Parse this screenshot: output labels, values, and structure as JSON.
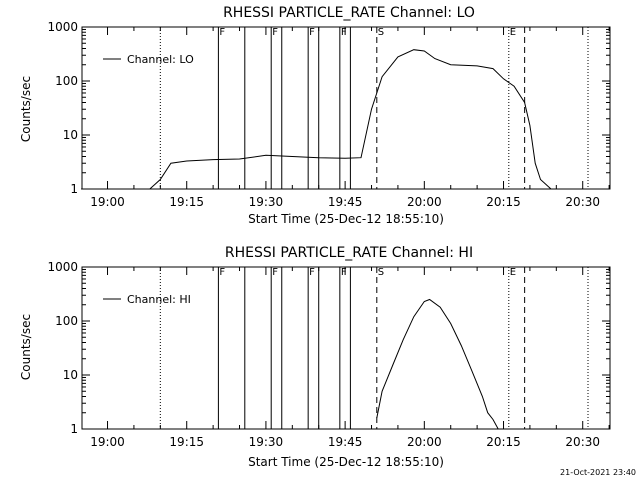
{
  "chart_data": [
    {
      "type": "line",
      "title": "RHESSI PARTICLE_RATE Channel: LO",
      "xlabel": "Start Time (25-Dec-12 18:55:10)",
      "ylabel": "Counts/sec",
      "y_scale": "log",
      "ylim": [
        1,
        1000
      ],
      "y_ticks": [
        "1",
        "10",
        "100",
        "1000"
      ],
      "xlim": [
        "18:55:10",
        "20:35:10"
      ],
      "x_ticks": [
        "19:00",
        "19:15",
        "19:30",
        "19:45",
        "20:00",
        "20:15",
        "20:30"
      ],
      "legend": "top-left",
      "series": [
        {
          "name": "Channel: LO",
          "x": [
            "18:55",
            "19:00",
            "19:05",
            "19:08",
            "19:10",
            "19:12",
            "19:15",
            "19:20",
            "19:25",
            "19:30",
            "19:35",
            "19:40",
            "19:45",
            "19:48",
            "19:50",
            "19:52",
            "19:55",
            "19:58",
            "20:00",
            "20:02",
            "20:05",
            "20:10",
            "20:13",
            "20:15",
            "20:17",
            "20:19",
            "20:20",
            "20:21",
            "20:22",
            "20:24",
            "20:26",
            "20:28",
            "20:31"
          ],
          "values": [
            1,
            1,
            1,
            1,
            1.5,
            3.0,
            3.3,
            3.5,
            3.6,
            4.2,
            4.0,
            3.8,
            3.7,
            3.8,
            30,
            120,
            280,
            380,
            360,
            260,
            200,
            190,
            170,
            110,
            80,
            40,
            15,
            3,
            1.5,
            1,
            1,
            1,
            1
          ]
        }
      ],
      "vertical_markers": [
        {
          "time": "19:10",
          "label": "",
          "style": "dotted"
        },
        {
          "time": "19:21",
          "label": "F",
          "style": "solid"
        },
        {
          "time": "19:26",
          "label": "",
          "style": "solid"
        },
        {
          "time": "19:31",
          "label": "F",
          "style": "solid"
        },
        {
          "time": "19:33",
          "label": "",
          "style": "solid"
        },
        {
          "time": "19:38",
          "label": "F",
          "style": "solid"
        },
        {
          "time": "19:40",
          "label": "",
          "style": "solid"
        },
        {
          "time": "19:44",
          "label": "F",
          "style": "solid"
        },
        {
          "time": "19:46",
          "label": "",
          "style": "solid"
        },
        {
          "time": "19:51",
          "label": "S",
          "style": "dashed"
        },
        {
          "time": "20:16",
          "label": "E",
          "style": "dotted"
        },
        {
          "time": "20:19",
          "label": "",
          "style": "dashed"
        },
        {
          "time": "20:31",
          "label": "",
          "style": "dotted"
        }
      ]
    },
    {
      "type": "line",
      "title": "RHESSI PARTICLE_RATE Channel: HI",
      "xlabel": "Start Time (25-Dec-12 18:55:10)",
      "ylabel": "Counts/sec",
      "y_scale": "log",
      "ylim": [
        1,
        1000
      ],
      "y_ticks": [
        "1",
        "10",
        "100",
        "1000"
      ],
      "xlim": [
        "18:55:10",
        "20:35:10"
      ],
      "x_ticks": [
        "19:00",
        "19:15",
        "19:30",
        "19:45",
        "20:00",
        "20:15",
        "20:30"
      ],
      "legend": "top-left",
      "series": [
        {
          "name": "Channel: HI",
          "x": [
            "19:51",
            "19:52",
            "19:54",
            "19:56",
            "19:58",
            "20:00",
            "20:01",
            "20:03",
            "20:05",
            "20:07",
            "20:09",
            "20:11",
            "20:12",
            "20:13",
            "20:14"
          ],
          "values": [
            1.6,
            5,
            15,
            45,
            120,
            230,
            250,
            180,
            90,
            35,
            12,
            4,
            2,
            1.5,
            1
          ]
        }
      ],
      "vertical_markers": [
        {
          "time": "19:10",
          "label": "",
          "style": "dotted"
        },
        {
          "time": "19:21",
          "label": "F",
          "style": "solid"
        },
        {
          "time": "19:26",
          "label": "",
          "style": "solid"
        },
        {
          "time": "19:31",
          "label": "F",
          "style": "solid"
        },
        {
          "time": "19:33",
          "label": "",
          "style": "solid"
        },
        {
          "time": "19:38",
          "label": "F",
          "style": "solid"
        },
        {
          "time": "19:40",
          "label": "",
          "style": "solid"
        },
        {
          "time": "19:44",
          "label": "F",
          "style": "solid"
        },
        {
          "time": "19:46",
          "label": "",
          "style": "solid"
        },
        {
          "time": "19:51",
          "label": "S",
          "style": "dashed"
        },
        {
          "time": "20:16",
          "label": "E",
          "style": "dotted"
        },
        {
          "time": "20:19",
          "label": "",
          "style": "dashed"
        },
        {
          "time": "20:31",
          "label": "",
          "style": "dotted"
        }
      ]
    }
  ],
  "footer": {
    "timestamp": "21-Oct-2021 23:40"
  }
}
